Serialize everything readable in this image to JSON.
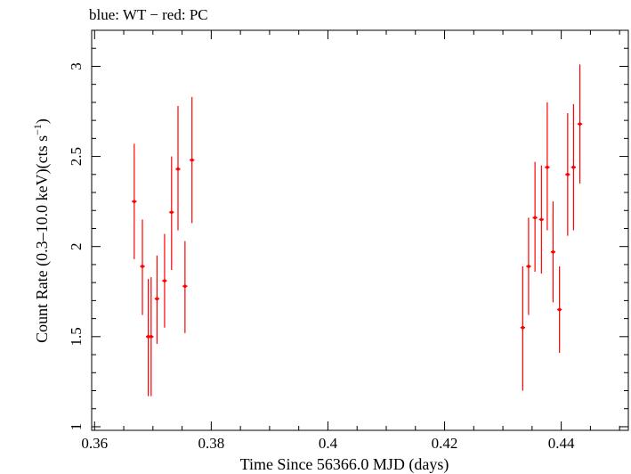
{
  "chart_data": {
    "type": "scatter",
    "title": "blue: WT − red: PC",
    "xlabel": "Time Since 56366.0 MJD (days)",
    "ylabel_main": "Count Rate (0.3–10.0 keV)(cts s",
    "ylabel_sup": "−1",
    "ylabel_close": ")",
    "xlim": [
      0.3595,
      0.4515
    ],
    "ylim": [
      0.98,
      3.2
    ],
    "x_ticks": [
      0.36,
      0.38,
      0.4,
      0.42,
      0.44
    ],
    "x_tick_labels": [
      "0.36",
      "0.38",
      "0.4",
      "0.42",
      "0.44"
    ],
    "y_ticks": [
      1.0,
      1.5,
      2.0,
      2.5,
      3.0
    ],
    "y_tick_labels": [
      "1",
      "1.5",
      "2",
      "2.5",
      "3"
    ],
    "grid": false,
    "series": [
      {
        "color": "#ff0000",
        "points": [
          {
            "x": 0.3668,
            "y": 2.25,
            "xerr": 0.0004,
            "ylo": 1.93,
            "yhi": 2.57
          },
          {
            "x": 0.3682,
            "y": 1.89,
            "xerr": 0.0004,
            "ylo": 1.62,
            "yhi": 2.15
          },
          {
            "x": 0.3692,
            "y": 1.5,
            "xerr": 0.0004,
            "ylo": 1.17,
            "yhi": 1.82
          },
          {
            "x": 0.3697,
            "y": 1.5,
            "xerr": 0.0004,
            "ylo": 1.17,
            "yhi": 1.83
          },
          {
            "x": 0.3707,
            "y": 1.71,
            "xerr": 0.0004,
            "ylo": 1.46,
            "yhi": 1.95
          },
          {
            "x": 0.372,
            "y": 1.81,
            "xerr": 0.0004,
            "ylo": 1.55,
            "yhi": 2.07
          },
          {
            "x": 0.3732,
            "y": 2.19,
            "xerr": 0.0004,
            "ylo": 1.87,
            "yhi": 2.5
          },
          {
            "x": 0.3743,
            "y": 2.43,
            "xerr": 0.0004,
            "ylo": 2.09,
            "yhi": 2.78
          },
          {
            "x": 0.3755,
            "y": 1.78,
            "xerr": 0.0004,
            "ylo": 1.52,
            "yhi": 2.03
          },
          {
            "x": 0.3767,
            "y": 2.48,
            "xerr": 0.0004,
            "ylo": 2.13,
            "yhi": 2.83
          },
          {
            "x": 0.4334,
            "y": 1.55,
            "xerr": 0.0004,
            "ylo": 1.2,
            "yhi": 1.89
          },
          {
            "x": 0.4344,
            "y": 1.89,
            "xerr": 0.0004,
            "ylo": 1.62,
            "yhi": 2.16
          },
          {
            "x": 0.4355,
            "y": 2.16,
            "xerr": 0.0004,
            "ylo": 1.86,
            "yhi": 2.47
          },
          {
            "x": 0.4366,
            "y": 2.15,
            "xerr": 0.0004,
            "ylo": 1.85,
            "yhi": 2.45
          },
          {
            "x": 0.4376,
            "y": 2.44,
            "xerr": 0.0004,
            "ylo": 2.09,
            "yhi": 2.8
          },
          {
            "x": 0.4386,
            "y": 1.97,
            "xerr": 0.0004,
            "ylo": 1.69,
            "yhi": 2.25
          },
          {
            "x": 0.4397,
            "y": 1.65,
            "xerr": 0.0004,
            "ylo": 1.41,
            "yhi": 1.89
          },
          {
            "x": 0.4411,
            "y": 2.4,
            "xerr": 0.0004,
            "ylo": 2.06,
            "yhi": 2.74
          },
          {
            "x": 0.4421,
            "y": 2.44,
            "xerr": 0.0004,
            "ylo": 2.09,
            "yhi": 2.79
          },
          {
            "x": 0.4432,
            "y": 2.68,
            "xerr": 0.0004,
            "ylo": 2.35,
            "yhi": 3.01
          }
        ]
      }
    ]
  }
}
